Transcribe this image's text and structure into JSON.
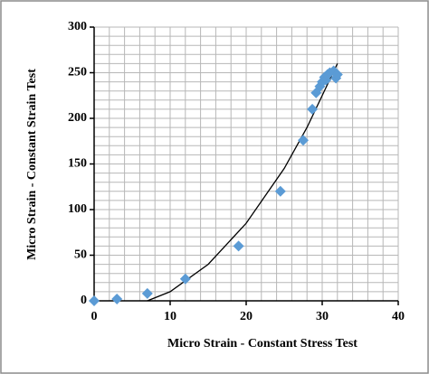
{
  "chart_data": {
    "type": "scatter",
    "x_label": "Micro Strain -  Constant Stress  Test",
    "y_label": "Micro Strain  -  Constant Strain  Test",
    "x": [
      0,
      3,
      7,
      12,
      19,
      24.5,
      27.5,
      28.7,
      29.2,
      29.7,
      30,
      30.3,
      30.5,
      30.7,
      31,
      31.5,
      31.8,
      32
    ],
    "values": [
      0,
      2,
      8,
      24,
      60,
      120,
      176,
      210,
      228,
      235,
      240,
      245,
      242,
      248,
      250,
      252,
      244,
      248
    ],
    "color": "#5b9bd5",
    "trendline": {
      "x": [
        7,
        10,
        15,
        20,
        25,
        28,
        30,
        32
      ],
      "values": [
        0,
        10,
        40,
        85,
        145,
        190,
        225,
        260
      ],
      "color": "#000000"
    },
    "xlim": [
      0,
      40
    ],
    "xticks": [
      0,
      10,
      20,
      30,
      40
    ],
    "ylim": [
      0,
      300
    ],
    "yticks": [
      0,
      50,
      100,
      150,
      200,
      250,
      300
    ],
    "grid": true
  }
}
